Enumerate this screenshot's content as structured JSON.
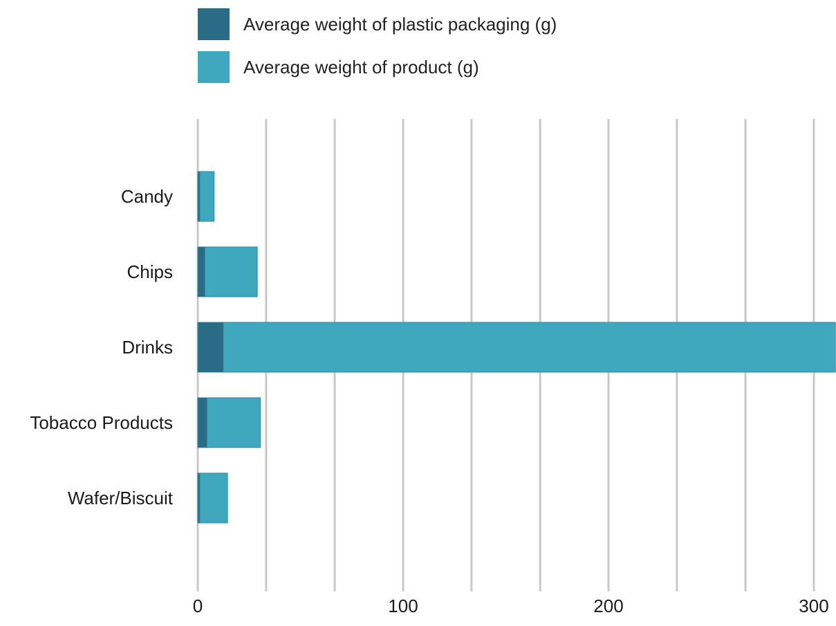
{
  "chart_data": {
    "type": "bar",
    "orientation": "horizontal",
    "stacked": true,
    "categories": [
      "Candy",
      "Chips",
      "Drinks",
      "Tobacco Products",
      "Wafer/Biscuit"
    ],
    "series": [
      {
        "name": "Average weight of plastic packaging (g)",
        "color": "#2a6b85",
        "values": [
          1,
          3.5,
          12.5,
          4.5,
          1
        ]
      },
      {
        "name": "Average weight of product (g)",
        "color": "#40a8be",
        "values": [
          7,
          25.5,
          298,
          26,
          13.5
        ]
      }
    ],
    "xlim": [
      0,
      310
    ],
    "xticks": [
      0,
      100,
      200,
      300
    ],
    "xtick_labels": [
      "0",
      "100",
      "200",
      "300"
    ],
    "gridlines": [
      0,
      33.3,
      66.7,
      100,
      133.3,
      166.7,
      200,
      233.3,
      266.7,
      300
    ],
    "grid": true,
    "legend_position": "top-left",
    "title": "",
    "xlabel": "",
    "ylabel": ""
  }
}
